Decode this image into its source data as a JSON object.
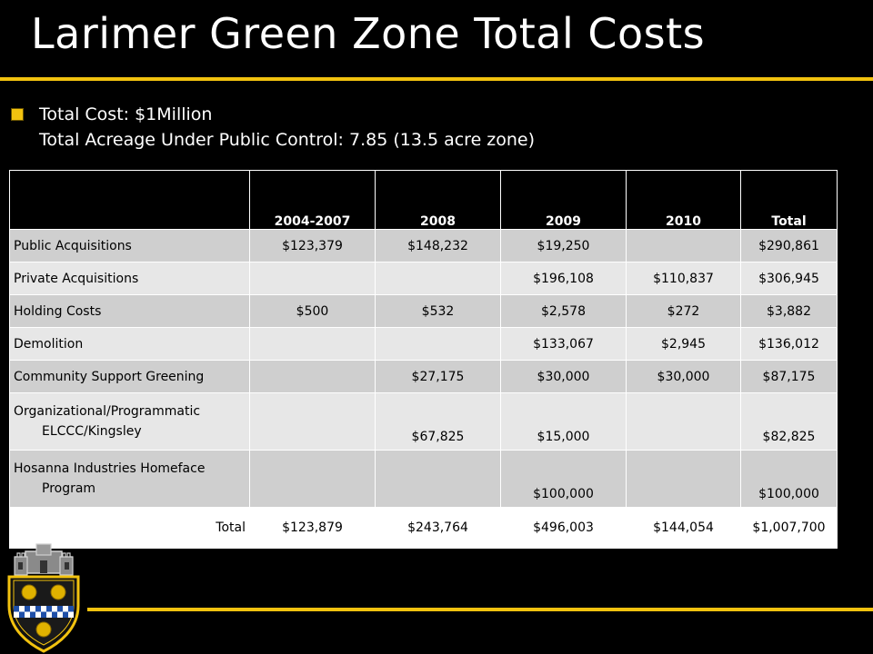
{
  "title": "Larimer Green Zone Total Costs",
  "bullet": {
    "line1": "Total Cost:  $1Million",
    "line2": "Total Acreage Under Public Control: 7.85 (13.5 acre zone)"
  },
  "table": {
    "headers": [
      "",
      "2004-2007",
      "2008",
      "2009",
      "2010",
      "Total"
    ],
    "rows": [
      {
        "label": "Public Acquisitions",
        "label2": "",
        "values": [
          "$123,379",
          "$148,232",
          "$19,250",
          "",
          "$290,861"
        ]
      },
      {
        "label": "Private Acquisitions",
        "label2": "",
        "values": [
          "",
          "",
          "$196,108",
          "$110,837",
          "$306,945"
        ]
      },
      {
        "label": "Holding Costs",
        "label2": "",
        "values": [
          "$500",
          "$532",
          "$2,578",
          "$272",
          "$3,882"
        ]
      },
      {
        "label": "Demolition",
        "label2": "",
        "values": [
          "",
          "",
          "$133,067",
          "$2,945",
          "$136,012"
        ]
      },
      {
        "label": "Community Support Greening",
        "label2": "",
        "values": [
          "",
          "$27,175",
          "$30,000",
          "$30,000",
          "$87,175"
        ]
      },
      {
        "label": "Organizational/Programmatic",
        "label2": "ELCCC/Kingsley",
        "values": [
          "",
          "$67,825",
          "$15,000",
          "",
          "$82,825"
        ]
      },
      {
        "label": "Hosanna Industries Homeface",
        "label2": "Program",
        "values": [
          "",
          "",
          "$100,000",
          "",
          "$100,000"
        ]
      },
      {
        "label": "Total",
        "label2": "",
        "values": [
          "$123,879",
          "$243,764",
          "$496,003",
          "$144,054",
          "$1,007,700"
        ]
      }
    ]
  },
  "colors": {
    "accent": "#f2c20f",
    "background": "#000000",
    "row_dark": "#cfcfcf",
    "row_light": "#e7e7e7"
  },
  "icons": {
    "bullet": "square-bullet-icon",
    "crest": "city-crest-icon"
  }
}
